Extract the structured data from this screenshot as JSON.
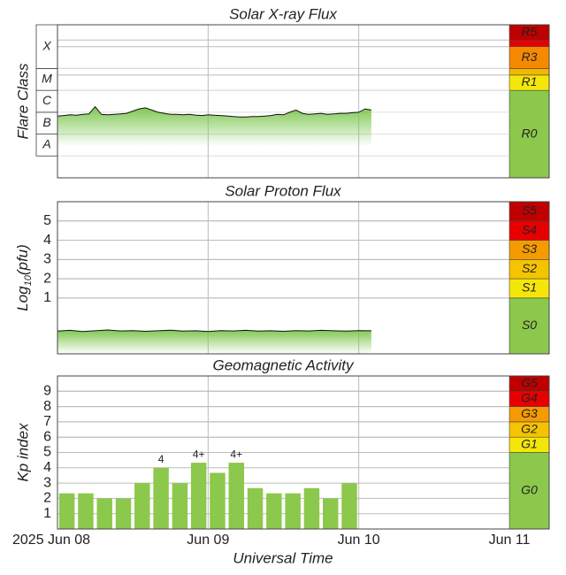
{
  "x_axis": {
    "xlim": [
      0,
      72
    ],
    "xlabel": "Universal Time",
    "xticks": [
      {
        "value": 0,
        "label": "2025 Jun 08"
      },
      {
        "value": 24,
        "label": "Jun 09"
      },
      {
        "value": 48,
        "label": "Jun 10"
      },
      {
        "value": 72,
        "label": "Jun 11"
      }
    ]
  },
  "chart_data": [
    {
      "type": "area",
      "title": "Solar X-ray Flux",
      "ylabel": "Flare Class",
      "ylim": [
        -9,
        -2
      ],
      "color": "#7ec850",
      "classes": [
        {
          "label": "A",
          "from": -8,
          "to": -7
        },
        {
          "label": "B",
          "from": -7,
          "to": -6
        },
        {
          "label": "C",
          "from": -6,
          "to": -5
        },
        {
          "label": "M",
          "from": -5,
          "to": -4
        },
        {
          "label": "X",
          "from": -4,
          "to": -2
        }
      ],
      "scale": [
        {
          "label": "R0",
          "from": -9,
          "to": -5,
          "color": "#8cc84b"
        },
        {
          "label": "R1",
          "from": -5,
          "to": -4.3,
          "color": "#f5e60a"
        },
        {
          "label": null,
          "from": -4.3,
          "to": -4,
          "color": "#f5b800"
        },
        {
          "label": "R3",
          "from": -4,
          "to": -3,
          "color": "#f58a00"
        },
        {
          "label": null,
          "from": -3,
          "to": -2.7,
          "color": "#e80000"
        },
        {
          "label": "R5",
          "from": -2.7,
          "to": -2,
          "color": "#c00000"
        }
      ],
      "x": [
        0,
        1,
        2,
        3,
        4,
        5,
        6,
        7,
        8,
        9,
        10,
        11,
        12,
        13,
        14,
        15,
        16,
        17,
        18,
        19,
        20,
        21,
        22,
        23,
        24,
        25,
        26,
        27,
        28,
        29,
        30,
        31,
        32,
        33,
        34,
        35,
        36,
        37,
        38,
        39,
        40,
        41,
        42,
        43,
        44,
        45,
        46,
        47,
        48,
        49,
        50
      ],
      "values": [
        -6.18,
        -6.15,
        -6.12,
        -6.14,
        -6.1,
        -6.08,
        -5.75,
        -6.1,
        -6.12,
        -6.1,
        -6.08,
        -6.05,
        -5.95,
        -5.85,
        -5.8,
        -5.9,
        -6.0,
        -6.05,
        -6.1,
        -6.1,
        -6.12,
        -6.1,
        -6.13,
        -6.15,
        -6.12,
        -6.14,
        -6.15,
        -6.17,
        -6.2,
        -6.22,
        -6.22,
        -6.2,
        -6.2,
        -6.18,
        -6.15,
        -6.1,
        -6.12,
        -6.0,
        -5.9,
        -6.05,
        -6.1,
        -6.08,
        -6.05,
        -6.1,
        -6.08,
        -6.05,
        -6.05,
        -6.02,
        -6.0,
        -5.85,
        -5.9
      ]
    },
    {
      "type": "area",
      "title": "Solar Proton Flux",
      "ylabel": [
        "Log",
        "10",
        "(pfu)"
      ],
      "ylim": [
        -1.9,
        6
      ],
      "yticks": [
        1,
        2,
        3,
        4,
        5
      ],
      "color": "#7ec850",
      "scale": [
        {
          "label": "S0",
          "from": -1.9,
          "to": 1,
          "color": "#8cc84b"
        },
        {
          "label": "S1",
          "from": 1,
          "to": 2,
          "color": "#f5e60a"
        },
        {
          "label": "S2",
          "from": 2,
          "to": 3,
          "color": "#f5c400"
        },
        {
          "label": "S3",
          "from": 3,
          "to": 4,
          "color": "#f59a00"
        },
        {
          "label": "S4",
          "from": 4,
          "to": 5,
          "color": "#e80000"
        },
        {
          "label": "S5",
          "from": 5,
          "to": 6,
          "color": "#c00000"
        }
      ],
      "x": [
        0,
        2,
        4,
        6,
        8,
        10,
        12,
        14,
        16,
        18,
        20,
        22,
        24,
        26,
        28,
        30,
        32,
        34,
        36,
        38,
        40,
        42,
        44,
        46,
        48,
        50
      ],
      "values": [
        -0.72,
        -0.68,
        -0.74,
        -0.7,
        -0.66,
        -0.71,
        -0.69,
        -0.73,
        -0.7,
        -0.67,
        -0.72,
        -0.7,
        -0.74,
        -0.69,
        -0.71,
        -0.68,
        -0.72,
        -0.7,
        -0.73,
        -0.69,
        -0.71,
        -0.68,
        -0.7,
        -0.72,
        -0.69,
        -0.7
      ]
    },
    {
      "type": "bar",
      "title": "Geomagnetic Activity",
      "ylabel": "Kp index",
      "ylim": [
        0,
        10
      ],
      "yticks": [
        1,
        2,
        3,
        4,
        5,
        6,
        7,
        8,
        9
      ],
      "color": "#8cc84b",
      "bar_hours": 3,
      "scale": [
        {
          "label": "G0",
          "from": 0,
          "to": 5,
          "color": "#8cc84b"
        },
        {
          "label": "G1",
          "from": 5,
          "to": 6,
          "color": "#f5e60a"
        },
        {
          "label": "G2",
          "from": 6,
          "to": 7,
          "color": "#f5c400"
        },
        {
          "label": "G3",
          "from": 7,
          "to": 8,
          "color": "#f59a00"
        },
        {
          "label": "G4",
          "from": 8,
          "to": 9,
          "color": "#e80000"
        },
        {
          "label": "G5",
          "from": 9,
          "to": 10,
          "color": "#c00000"
        }
      ],
      "x": [
        1.5,
        4.5,
        7.5,
        10.5,
        13.5,
        16.5,
        19.5,
        22.5,
        25.5,
        28.5,
        31.5,
        34.5,
        37.5,
        40.5,
        43.5,
        46.5
      ],
      "values": [
        2.33,
        2.33,
        2,
        2,
        3,
        4,
        3,
        4.33,
        3.67,
        4.33,
        2.67,
        2.33,
        2.33,
        2.67,
        2,
        3
      ],
      "value_labels": [
        null,
        null,
        null,
        null,
        null,
        "4",
        null,
        "4+",
        null,
        "4+",
        null,
        null,
        null,
        null,
        null,
        null
      ]
    }
  ]
}
